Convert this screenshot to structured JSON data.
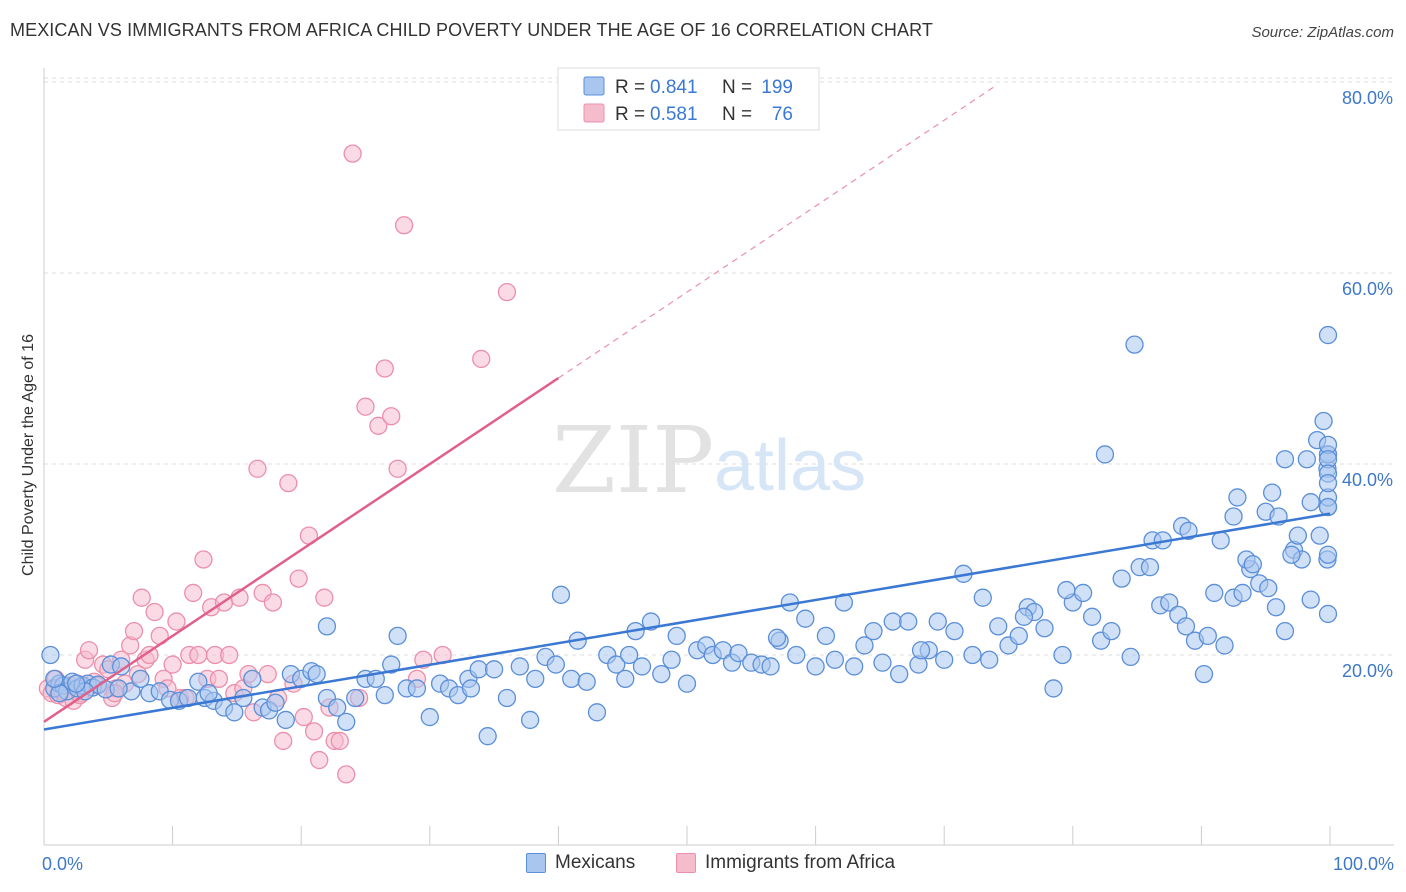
{
  "title": "MEXICAN VS IMMIGRANTS FROM AFRICA CHILD POVERTY UNDER THE AGE OF 16 CORRELATION CHART",
  "source": "Source: ZipAtlas.com",
  "watermark": {
    "zip": "ZIP",
    "atlas": "atlas"
  },
  "colors": {
    "blue": "#3a78d4",
    "blue_fill": "#a9c6ef",
    "blue_stroke": "#5b8fd8",
    "pink": "#e0608a",
    "pink_fill": "#f5bccd",
    "pink_stroke": "#ec8fab",
    "grid": "#dddddd",
    "tick_text": "#3d78c9"
  },
  "chart_data": {
    "type": "scatter",
    "xlabel": "",
    "ylabel": "Child Poverty Under the Age of 16",
    "xlim": [
      0,
      100
    ],
    "ylim": [
      0,
      82
    ],
    "x_tick_labels": {
      "left": "0.0%",
      "right": "100.0%"
    },
    "y_ticks": [
      20,
      40,
      60,
      80
    ],
    "y_tick_labels": [
      "20.0%",
      "40.0%",
      "60.0%",
      "80.0%"
    ],
    "grid": true,
    "legend_position": "top-center",
    "stats": [
      {
        "r_label": "R =",
        "r": "0.841",
        "n_label": "N =",
        "n": "199"
      },
      {
        "r_label": "R =",
        "r": "0.581",
        "n_label": "N =",
        "n": "76"
      }
    ],
    "series": [
      {
        "name": "Mexicans",
        "trend": {
          "x0": 0,
          "y0": 12.2,
          "x1": 100,
          "y1": 34.8
        },
        "points": [
          [
            0.5,
            20
          ],
          [
            0.8,
            16.5
          ],
          [
            1.2,
            17
          ],
          [
            1.5,
            16.8
          ],
          [
            1.8,
            16.2
          ],
          [
            2.2,
            17.2
          ],
          [
            2.6,
            16.5
          ],
          [
            3,
            16.8
          ],
          [
            3.4,
            17
          ],
          [
            3.8,
            16.6
          ],
          [
            4.2,
            16.9
          ],
          [
            4.8,
            16.4
          ],
          [
            5.2,
            19
          ],
          [
            6,
            18.8
          ],
          [
            6.8,
            16.2
          ],
          [
            7.5,
            17.5
          ],
          [
            8.2,
            16
          ],
          [
            9,
            16.2
          ],
          [
            9.8,
            15.3
          ],
          [
            10.5,
            15.2
          ],
          [
            11.2,
            15.5
          ],
          [
            12,
            17.2
          ],
          [
            12.5,
            15.5
          ],
          [
            13.2,
            15.2
          ],
          [
            14,
            14.5
          ],
          [
            14.8,
            14
          ],
          [
            15.5,
            15.5
          ],
          [
            16.2,
            17.5
          ],
          [
            17,
            14.5
          ],
          [
            17.5,
            14.2
          ],
          [
            18,
            15
          ],
          [
            18.8,
            13.2
          ],
          [
            19.2,
            18
          ],
          [
            20,
            17.5
          ],
          [
            20.8,
            18.3
          ],
          [
            21.2,
            18
          ],
          [
            22,
            15.5
          ],
          [
            22.8,
            14.5
          ],
          [
            23.5,
            13
          ],
          [
            24.2,
            15.5
          ],
          [
            25,
            17.5
          ],
          [
            25.8,
            17.5
          ],
          [
            26.5,
            15.8
          ],
          [
            27,
            19
          ],
          [
            27.5,
            22
          ],
          [
            28.2,
            16.5
          ],
          [
            29,
            16.5
          ],
          [
            30,
            13.5
          ],
          [
            30.8,
            17
          ],
          [
            31.5,
            16.5
          ],
          [
            32.2,
            15.8
          ],
          [
            33,
            17.5
          ],
          [
            33.8,
            18.5
          ],
          [
            34.5,
            11.5
          ],
          [
            35,
            18.5
          ],
          [
            36,
            15.5
          ],
          [
            37,
            18.8
          ],
          [
            37.8,
            13.2
          ],
          [
            38.2,
            17.5
          ],
          [
            39,
            19.8
          ],
          [
            39.8,
            19
          ],
          [
            40.2,
            26.3
          ],
          [
            41,
            17.5
          ],
          [
            41.5,
            21.5
          ],
          [
            42.2,
            17.2
          ],
          [
            43,
            14
          ],
          [
            43.8,
            20
          ],
          [
            44.5,
            19
          ],
          [
            45.2,
            17.5
          ],
          [
            46,
            22.5
          ],
          [
            46.5,
            18.8
          ],
          [
            47.2,
            23.5
          ],
          [
            48,
            18
          ],
          [
            48.8,
            19.5
          ],
          [
            49.2,
            22
          ],
          [
            50,
            17
          ],
          [
            50.8,
            20.5
          ],
          [
            51.5,
            21
          ],
          [
            52,
            20
          ],
          [
            52.8,
            20.5
          ],
          [
            53.5,
            19.2
          ],
          [
            54,
            20.2
          ],
          [
            55,
            19.2
          ],
          [
            55.8,
            19
          ],
          [
            56.5,
            18.8
          ],
          [
            57.2,
            21.5
          ],
          [
            58,
            25.5
          ],
          [
            58.5,
            20
          ],
          [
            59.2,
            23.8
          ],
          [
            60,
            18.8
          ],
          [
            60.8,
            22
          ],
          [
            61.5,
            19.5
          ],
          [
            62.2,
            25.5
          ],
          [
            63,
            18.8
          ],
          [
            63.8,
            21
          ],
          [
            64.5,
            22.5
          ],
          [
            65.2,
            19.2
          ],
          [
            66,
            23.5
          ],
          [
            66.5,
            18
          ],
          [
            67.2,
            23.5
          ],
          [
            68,
            19
          ],
          [
            68.8,
            20.5
          ],
          [
            69.5,
            23.5
          ],
          [
            70,
            19.5
          ],
          [
            70.8,
            22.5
          ],
          [
            71.5,
            28.5
          ],
          [
            72.2,
            20
          ],
          [
            73,
            26
          ],
          [
            73.5,
            19.5
          ],
          [
            74.2,
            23
          ],
          [
            75,
            21
          ],
          [
            75.8,
            22
          ],
          [
            76.5,
            25
          ],
          [
            77,
            24.5
          ],
          [
            77.8,
            22.8
          ],
          [
            78.5,
            16.5
          ],
          [
            79.2,
            20
          ],
          [
            80,
            25.5
          ],
          [
            80.8,
            26.5
          ],
          [
            81.5,
            24
          ],
          [
            82.2,
            21.5
          ],
          [
            83,
            22.5
          ],
          [
            83.8,
            28
          ],
          [
            84.5,
            19.8
          ],
          [
            85.2,
            29.2
          ],
          [
            86,
            29.2
          ],
          [
            86.8,
            25.2
          ],
          [
            87.5,
            25.5
          ],
          [
            88.2,
            24.2
          ],
          [
            88.8,
            23
          ],
          [
            89.5,
            21.5
          ],
          [
            90.2,
            18
          ],
          [
            91,
            26.5
          ],
          [
            91.8,
            21
          ],
          [
            92.5,
            26
          ],
          [
            93.2,
            26.5
          ],
          [
            93.8,
            29
          ],
          [
            94.5,
            27.5
          ],
          [
            95.2,
            27
          ],
          [
            95.8,
            25
          ],
          [
            96.5,
            22.5
          ],
          [
            97.2,
            31
          ],
          [
            97.8,
            30
          ],
          [
            98.5,
            25.8
          ],
          [
            99.2,
            32.5
          ],
          [
            99.8,
            30
          ],
          [
            22,
            23
          ],
          [
            33.2,
            16.5
          ],
          [
            45.5,
            20
          ],
          [
            57,
            21.8
          ],
          [
            68.2,
            20.5
          ],
          [
            79.5,
            26.8
          ],
          [
            90.5,
            22
          ],
          [
            12.8,
            16
          ],
          [
            5.8,
            16.5
          ],
          [
            3.2,
            16.2
          ],
          [
            1.2,
            16
          ],
          [
            0.8,
            17.5
          ],
          [
            2.5,
            17
          ],
          [
            76.2,
            24
          ],
          [
            95,
            35
          ],
          [
            82.5,
            41
          ],
          [
            84.8,
            52.5
          ],
          [
            86.2,
            32
          ],
          [
            87,
            32
          ],
          [
            88.5,
            33.5
          ],
          [
            89,
            33
          ],
          [
            91.5,
            32
          ],
          [
            92.5,
            34.5
          ],
          [
            92.8,
            36.5
          ],
          [
            93.5,
            30
          ],
          [
            94,
            29.5
          ],
          [
            95.5,
            37
          ],
          [
            96,
            34.5
          ],
          [
            96.5,
            40.5
          ],
          [
            97,
            30.5
          ],
          [
            97.5,
            32.5
          ],
          [
            98.2,
            40.5
          ],
          [
            98.5,
            36
          ],
          [
            99,
            42.5
          ],
          [
            99.5,
            44.5
          ],
          [
            99.8,
            39.5
          ],
          [
            100,
            41
          ],
          [
            100.3,
            53.5
          ],
          [
            100.5,
            35.5
          ],
          [
            101,
            36.5
          ],
          [
            101.5,
            41
          ],
          [
            102,
            42
          ],
          [
            102.5,
            40.5
          ],
          [
            103,
            24.3
          ],
          [
            103.5,
            30.5
          ],
          [
            104,
            39
          ],
          [
            104.5,
            35.5
          ],
          [
            105,
            38
          ]
        ]
      },
      {
        "name": "Immigrants from Africa",
        "trend": {
          "x0": 0,
          "y0": 13,
          "x1": 40,
          "y1": 49,
          "dash_to_x": 74,
          "dash_to_y": 79.6
        },
        "points": [
          [
            0.3,
            16.5
          ],
          [
            0.6,
            16
          ],
          [
            0.9,
            17.5
          ],
          [
            1.1,
            15.8
          ],
          [
            1.4,
            16.2
          ],
          [
            1.7,
            15.5
          ],
          [
            2,
            16.8
          ],
          [
            2.3,
            15.2
          ],
          [
            2.6,
            17
          ],
          [
            2.9,
            16
          ],
          [
            3.2,
            19.5
          ],
          [
            3.5,
            20.5
          ],
          [
            3.9,
            17.2
          ],
          [
            4.2,
            16.8
          ],
          [
            4.6,
            19
          ],
          [
            5,
            18.5
          ],
          [
            5.3,
            15.5
          ],
          [
            5.6,
            16.5
          ],
          [
            6,
            19.5
          ],
          [
            6.3,
            17
          ],
          [
            6.7,
            21
          ],
          [
            7,
            22.5
          ],
          [
            7.3,
            18
          ],
          [
            7.6,
            26
          ],
          [
            7.9,
            19.5
          ],
          [
            8.2,
            20
          ],
          [
            8.6,
            24.5
          ],
          [
            9,
            22
          ],
          [
            9.3,
            17.5
          ],
          [
            9.6,
            16.5
          ],
          [
            10,
            19
          ],
          [
            10.3,
            23.5
          ],
          [
            10.6,
            15.5
          ],
          [
            11,
            15.5
          ],
          [
            11.3,
            20
          ],
          [
            11.6,
            26.5
          ],
          [
            12,
            20
          ],
          [
            12.4,
            30
          ],
          [
            12.7,
            17.5
          ],
          [
            13,
            25
          ],
          [
            13.3,
            20
          ],
          [
            13.6,
            17.5
          ],
          [
            14,
            25.5
          ],
          [
            14.4,
            20
          ],
          [
            14.8,
            16
          ],
          [
            15.2,
            26
          ],
          [
            15.5,
            16.5
          ],
          [
            15.9,
            18
          ],
          [
            16.3,
            14
          ],
          [
            16.6,
            39.5
          ],
          [
            17,
            26.5
          ],
          [
            17.4,
            18
          ],
          [
            17.8,
            25.5
          ],
          [
            18.2,
            15.5
          ],
          [
            18.6,
            11
          ],
          [
            19,
            38
          ],
          [
            19.4,
            17
          ],
          [
            19.8,
            28
          ],
          [
            20.2,
            13.5
          ],
          [
            20.6,
            32.5
          ],
          [
            21,
            12
          ],
          [
            21.4,
            9
          ],
          [
            21.8,
            26
          ],
          [
            22.2,
            14.5
          ],
          [
            22.6,
            11
          ],
          [
            23,
            11
          ],
          [
            23.5,
            7.5
          ],
          [
            24,
            72.5
          ],
          [
            24.5,
            15.5
          ],
          [
            25,
            46
          ],
          [
            26,
            44
          ],
          [
            26.5,
            50
          ],
          [
            27,
            45
          ],
          [
            27.5,
            39.5
          ],
          [
            28,
            65
          ],
          [
            29,
            17.5
          ],
          [
            29.5,
            19.5
          ],
          [
            31,
            20
          ],
          [
            34,
            51
          ],
          [
            36,
            58
          ],
          [
            5.5,
            16
          ],
          [
            2.8,
            15.8
          ]
        ]
      }
    ]
  }
}
